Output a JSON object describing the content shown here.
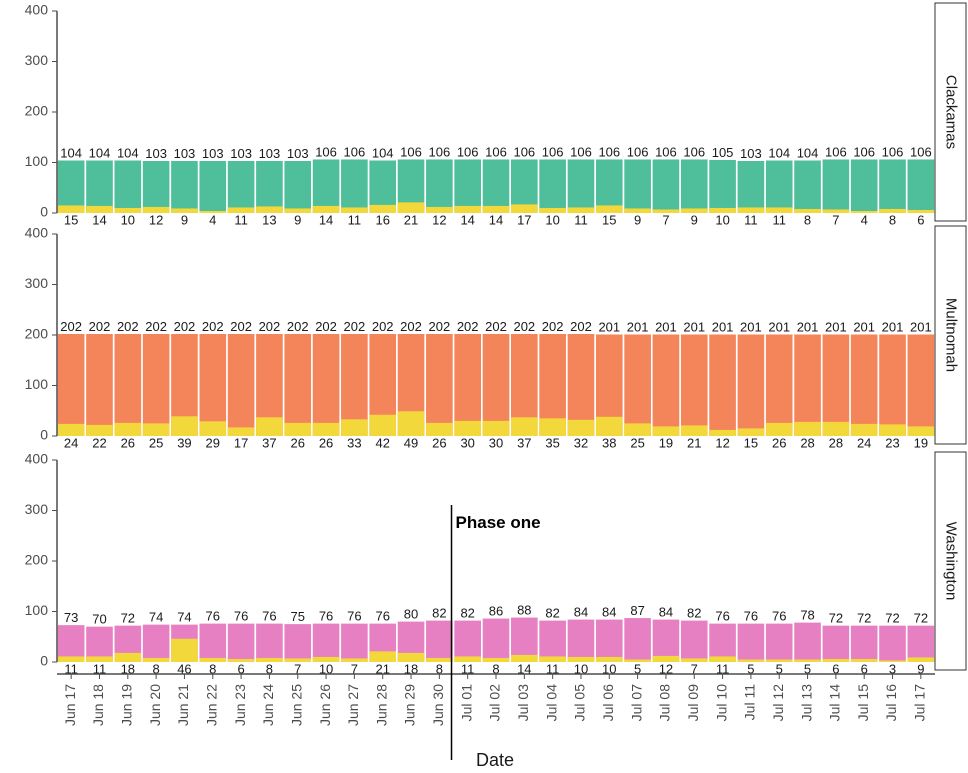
{
  "chart_data": {
    "type": "bar",
    "xlabel": "Date",
    "ylim": [
      0,
      400
    ],
    "yticks": [
      0,
      100,
      200,
      300,
      400
    ],
    "grid": false,
    "colors": {
      "icu": "#f3d83b",
      "Clackamas": "#4fbe9a",
      "Multnomah": "#f4845a",
      "Washington": "#e680c3"
    },
    "categories": [
      "Jun 17",
      "Jun 18",
      "Jun 19",
      "Jun 20",
      "Jun 21",
      "Jun 22",
      "Jun 23",
      "Jun 24",
      "Jun 25",
      "Jun 26",
      "Jun 27",
      "Jun 28",
      "Jun 29",
      "Jun 30",
      "Jul 01",
      "Jul 02",
      "Jul 03",
      "Jul 04",
      "Jul 05",
      "Jul 06",
      "Jul 07",
      "Jul 08",
      "Jul 09",
      "Jul 10",
      "Jul 11",
      "Jul 12",
      "Jul 13",
      "Jul 14",
      "Jul 15",
      "Jul 16",
      "Jul 17"
    ],
    "panels": [
      {
        "name": "Clackamas",
        "totals": [
          104,
          104,
          104,
          103,
          103,
          103,
          103,
          103,
          103,
          106,
          106,
          104,
          106,
          106,
          106,
          106,
          106,
          106,
          106,
          106,
          106,
          106,
          106,
          105,
          103,
          104,
          104,
          106,
          106,
          106,
          106
        ],
        "icu": [
          15,
          14,
          10,
          12,
          9,
          4,
          11,
          13,
          9,
          14,
          11,
          16,
          21,
          12,
          14,
          14,
          17,
          10,
          11,
          15,
          9,
          7,
          9,
          10,
          11,
          11,
          8,
          7,
          4,
          8,
          6
        ]
      },
      {
        "name": "Multnomah",
        "totals": [
          202,
          202,
          202,
          202,
          202,
          202,
          202,
          202,
          202,
          202,
          202,
          202,
          202,
          202,
          202,
          202,
          202,
          202,
          202,
          201,
          201,
          201,
          201,
          201,
          201,
          201,
          201,
          201,
          201,
          201,
          201
        ],
        "icu": [
          24,
          22,
          26,
          25,
          39,
          29,
          17,
          37,
          26,
          26,
          33,
          42,
          49,
          26,
          30,
          30,
          37,
          35,
          32,
          38,
          25,
          19,
          21,
          12,
          15,
          26,
          28,
          28,
          24,
          23,
          19
        ]
      },
      {
        "name": "Washington",
        "totals": [
          73,
          70,
          72,
          74,
          74,
          76,
          76,
          76,
          75,
          76,
          76,
          76,
          80,
          82,
          82,
          86,
          88,
          82,
          84,
          84,
          87,
          84,
          82,
          76,
          76,
          76,
          78,
          72,
          72,
          72,
          72
        ],
        "icu": [
          11,
          11,
          18,
          8,
          46,
          8,
          6,
          8,
          7,
          10,
          7,
          21,
          18,
          8,
          11,
          8,
          14,
          11,
          10,
          10,
          5,
          12,
          7,
          11,
          5,
          5,
          5,
          6,
          6,
          3,
          9
        ]
      }
    ],
    "annotation": {
      "text": "Phase one",
      "x": "Jul 01",
      "panel": "Washington"
    }
  }
}
